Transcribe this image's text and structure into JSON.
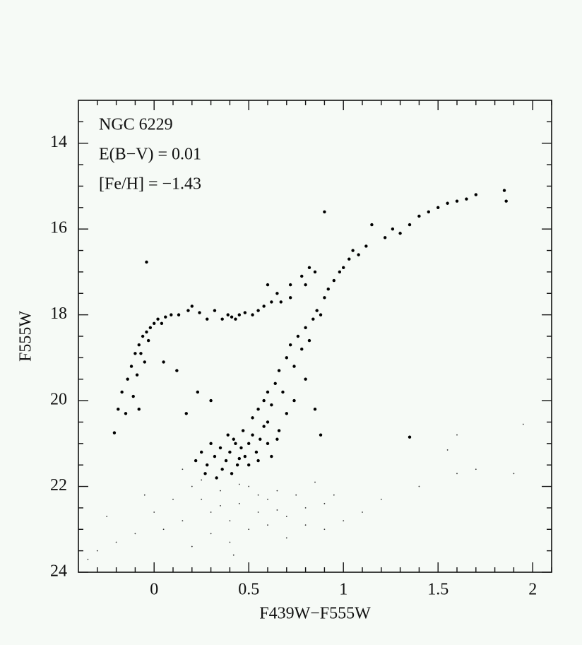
{
  "chart_data": {
    "type": "scatter",
    "xlabel": "F439W−F555W",
    "ylabel": "F555W",
    "annotations": [
      "NGC 6229",
      "E(B−V) = 0.01",
      "[Fe/H] = −1.43"
    ],
    "xlim": [
      -0.4,
      2.1
    ],
    "ylim": [
      24,
      13
    ],
    "xticks": [
      0,
      0.5,
      1,
      1.5,
      2
    ],
    "yticks": [
      14,
      16,
      18,
      20,
      22,
      24
    ],
    "xminorticks": [
      -0.3,
      -0.2,
      -0.1,
      0.1,
      0.2,
      0.3,
      0.4,
      0.6,
      0.7,
      0.8,
      0.9,
      1.1,
      1.2,
      1.3,
      1.4,
      1.6,
      1.7,
      1.8,
      1.9,
      2.1
    ],
    "yminorticks": [
      13.5,
      14.5,
      15,
      15.5,
      16.5,
      17,
      17.5,
      18.5,
      19,
      19.5,
      20.5,
      21,
      21.5,
      22.5,
      23,
      23.5
    ],
    "series": [
      {
        "color": "#000000",
        "marker_size": 2.2,
        "x": [
          -0.21,
          -0.19,
          -0.17,
          -0.15,
          -0.14,
          -0.12,
          -0.11,
          -0.1,
          -0.09,
          -0.08,
          -0.07,
          -0.06,
          -0.05,
          -0.04,
          -0.03,
          -0.02,
          0.0,
          0.02,
          0.04,
          0.06,
          0.09,
          0.13,
          0.18,
          0.2,
          0.24,
          0.28,
          0.32,
          0.36,
          0.39,
          0.41,
          0.43,
          0.45,
          0.48,
          0.52,
          0.55,
          0.58,
          0.62,
          0.67,
          0.72,
          -0.04,
          0.9,
          0.12,
          0.05,
          0.17,
          0.23,
          0.3,
          -0.08,
          1.35,
          0.6,
          0.65,
          0.72,
          0.78,
          0.8,
          0.82,
          0.85,
          0.52,
          0.55,
          0.58,
          0.6,
          0.62,
          0.64,
          0.66,
          0.68,
          0.7,
          0.72,
          0.74,
          0.76,
          0.78,
          0.8,
          0.82,
          0.84,
          0.86,
          0.88,
          0.9,
          0.92,
          0.95,
          0.98,
          1.0,
          1.03,
          1.05,
          1.08,
          1.12,
          1.15,
          1.22,
          1.26,
          1.3,
          1.35,
          1.4,
          1.45,
          1.5,
          1.55,
          1.6,
          1.65,
          1.7,
          1.85,
          1.86,
          0.6,
          0.66,
          0.7,
          0.74,
          0.8,
          0.85,
          0.88,
          0.3,
          0.32,
          0.35,
          0.38,
          0.4,
          0.42,
          0.44,
          0.46,
          0.48,
          0.5,
          0.52,
          0.54,
          0.56,
          0.36,
          0.41,
          0.28,
          0.25,
          0.6,
          0.65,
          0.47,
          0.33,
          0.5,
          0.58,
          0.39,
          0.43,
          0.45,
          0.55,
          0.62,
          0.27,
          0.22
        ],
        "values": [
          20.75,
          20.2,
          19.8,
          20.3,
          19.5,
          19.2,
          19.9,
          18.9,
          19.4,
          18.7,
          18.9,
          18.5,
          19.1,
          18.4,
          18.6,
          18.3,
          18.2,
          18.1,
          18.2,
          18.05,
          18.0,
          18.0,
          17.9,
          17.8,
          17.95,
          18.1,
          17.9,
          18.1,
          18.0,
          18.05,
          18.1,
          18.0,
          17.95,
          18.0,
          17.9,
          17.8,
          17.7,
          17.7,
          17.6,
          16.77,
          15.6,
          19.3,
          19.1,
          20.3,
          19.8,
          20.0,
          20.2,
          20.85,
          17.3,
          17.5,
          17.3,
          17.1,
          17.3,
          16.9,
          17.0,
          20.4,
          20.2,
          20.0,
          19.8,
          20.1,
          19.6,
          19.3,
          19.8,
          19.0,
          18.7,
          19.2,
          18.5,
          18.8,
          18.3,
          18.6,
          18.1,
          17.9,
          18.0,
          17.6,
          17.4,
          17.2,
          17.0,
          16.9,
          16.7,
          16.5,
          16.6,
          16.4,
          15.9,
          16.2,
          16.0,
          16.1,
          15.9,
          15.7,
          15.6,
          15.5,
          15.4,
          15.35,
          15.3,
          15.2,
          15.1,
          15.35,
          20.5,
          20.7,
          20.3,
          20.0,
          19.5,
          20.2,
          20.8,
          21.0,
          21.3,
          21.1,
          21.4,
          21.2,
          20.9,
          21.5,
          21.1,
          21.3,
          21.0,
          20.8,
          21.2,
          20.9,
          21.6,
          21.7,
          21.5,
          21.2,
          21.0,
          20.9,
          20.7,
          21.8,
          21.5,
          20.6,
          20.8,
          21.0,
          21.35,
          21.4,
          21.3,
          21.7,
          21.4
        ]
      },
      {
        "color": "#333333",
        "marker_size": 0.9,
        "x": [
          0.2,
          0.25,
          0.3,
          0.35,
          0.4,
          0.45,
          0.5,
          0.55,
          0.6,
          0.65,
          0.7,
          0.75,
          0.8,
          0.85,
          0.9,
          0.15,
          0.1,
          0.05,
          0.0,
          -0.1,
          -0.2,
          -0.3,
          -0.35,
          0.3,
          0.4,
          0.5,
          0.6,
          0.7,
          0.2,
          1.0,
          1.1,
          1.2,
          1.4,
          1.6,
          1.7,
          1.9,
          1.95,
          1.55,
          0.35,
          0.45,
          0.55,
          0.25,
          0.65,
          0.8,
          0.95,
          -0.05,
          -0.25,
          0.15,
          0.42,
          0.9,
          1.6
        ],
        "values": [
          22.0,
          22.3,
          22.6,
          22.1,
          22.8,
          22.4,
          22.0,
          22.6,
          22.3,
          22.1,
          22.7,
          22.2,
          22.5,
          21.9,
          22.4,
          22.8,
          22.3,
          23.0,
          22.6,
          23.1,
          23.3,
          23.5,
          23.7,
          23.1,
          23.3,
          23.0,
          22.9,
          23.2,
          23.4,
          22.8,
          22.6,
          22.3,
          22.0,
          21.7,
          21.6,
          21.7,
          20.55,
          21.15,
          22.45,
          21.95,
          22.2,
          21.85,
          22.55,
          22.9,
          22.2,
          22.2,
          22.7,
          21.6,
          23.6,
          23.0,
          20.8
        ]
      }
    ]
  }
}
